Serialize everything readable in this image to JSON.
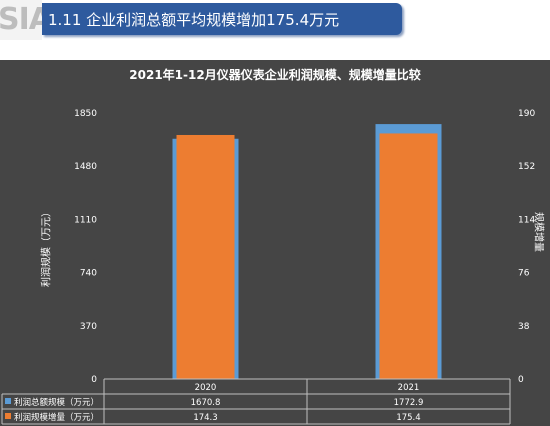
{
  "header": {
    "logo_text": "SIA",
    "title": "1.11  企业利润总额平均规模增加175.4万元"
  },
  "colors": {
    "header_bg": "#2e5a9e",
    "panel_bg": "#454545",
    "blue_series": "#5b9bd5",
    "orange_series": "#ed7d31"
  },
  "chart_data": {
    "type": "bar",
    "title": "2021年1-12月仪器仪表企业利润规模、规模增量比较",
    "categories": [
      "2020",
      "2021"
    ],
    "ylabel_left": "利润规模（万元）",
    "ylabel_right": "规模增量",
    "y_left_ticks": [
      "0",
      "370",
      "740",
      "1110",
      "1480",
      "1850"
    ],
    "y_right_ticks": [
      "0",
      "38",
      "76",
      "114",
      "152",
      "190"
    ],
    "ylim_left": [
      0,
      1850
    ],
    "ylim_right": [
      0,
      190
    ],
    "grid": false,
    "legend": "data-table",
    "series": [
      {
        "name": "利润总额规模（万元）",
        "axis": "left",
        "color": "#5b9bd5",
        "values": [
          1670.8,
          1772.9
        ],
        "labels": [
          "1670.8",
          "1772.9"
        ]
      },
      {
        "name": "利润规模增量（万元）",
        "axis": "right",
        "color": "#ed7d31",
        "values": [
          174.3,
          175.4
        ],
        "labels": [
          "174.3",
          "175.4"
        ]
      }
    ]
  }
}
